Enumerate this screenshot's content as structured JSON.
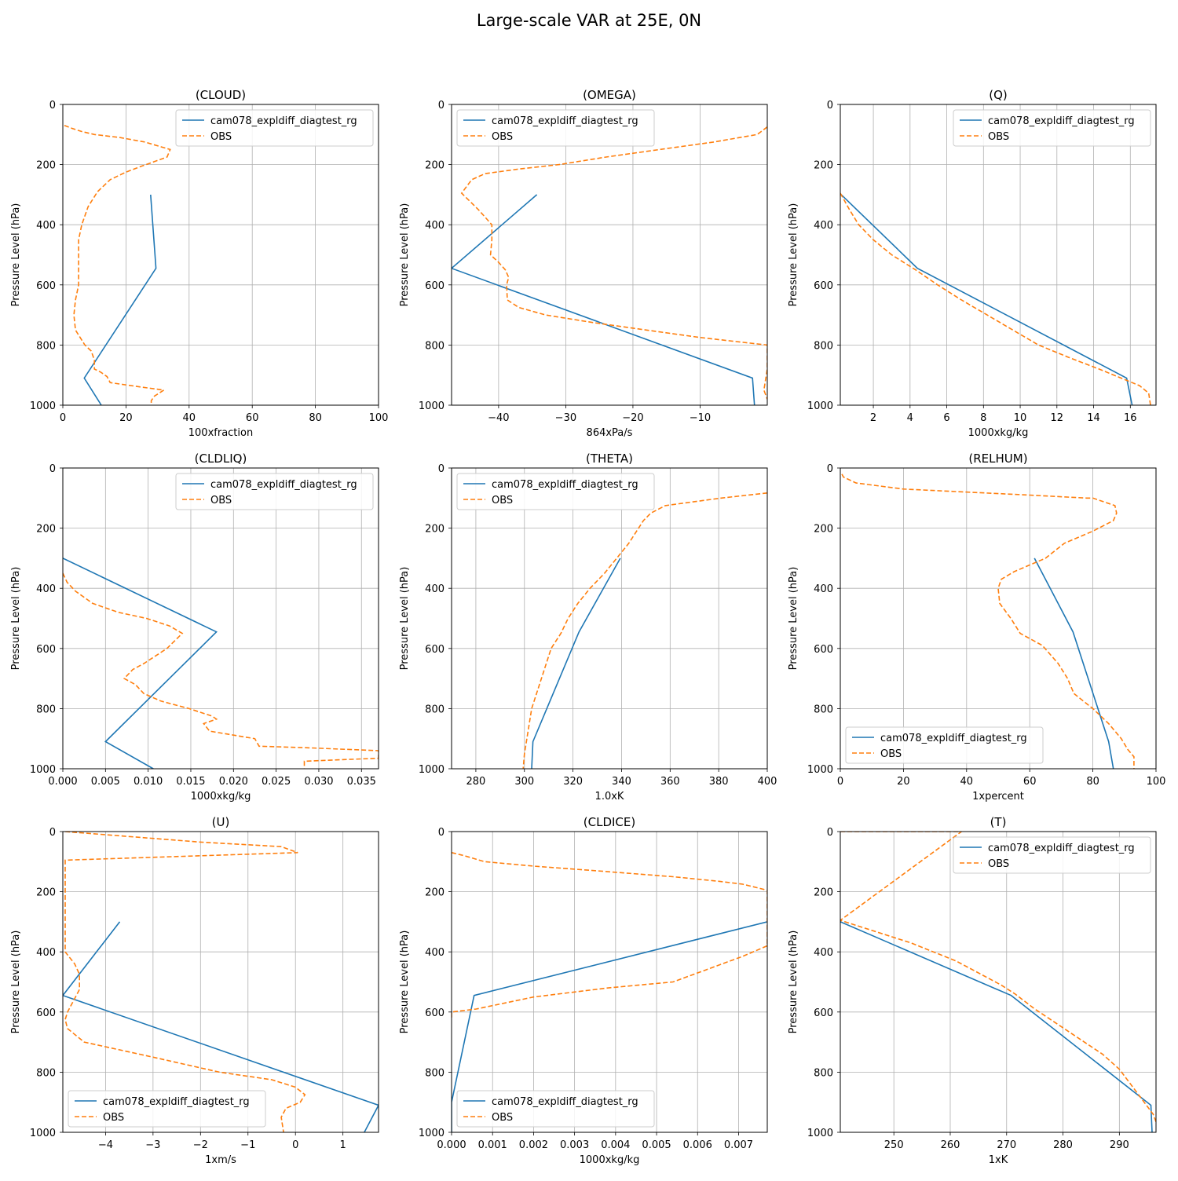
{
  "figure": {
    "title": "Large-scale VAR at 25E, 0N",
    "colors": {
      "model": "#1f77b4",
      "obs": "#ff7f0e",
      "grid": "#b0b0b0"
    }
  },
  "chart_data": [
    {
      "type": "line",
      "title": "(CLOUD)",
      "xlabel": "100xfraction",
      "ylabel": "Pressure Level (hPa)",
      "xlim": [
        0,
        100
      ],
      "ylim": [
        1000,
        0
      ],
      "grid": true,
      "legend": "upper-right",
      "xticks": [
        0,
        20,
        40,
        60,
        80,
        100
      ],
      "xticklabels": [
        "0",
        "20",
        "40",
        "60",
        "80",
        "100"
      ],
      "yticks": [
        0,
        200,
        400,
        600,
        800,
        1000
      ],
      "yticklabels": [
        "0",
        "200",
        "400",
        "600",
        "800",
        "1000"
      ],
      "series": [
        {
          "name": "cam078_expldiff_diagtest_rg",
          "style": "solid",
          "x": [
            27.8,
            29.5,
            6.8,
            12.2
          ],
          "y": [
            300,
            545,
            910,
            1000
          ]
        },
        {
          "name": "OBS",
          "style": "dashed",
          "x": [
            0.5,
            3,
            6,
            10,
            18,
            26,
            34,
            33,
            29,
            25,
            20,
            15,
            11,
            8,
            6,
            5,
            5,
            5,
            5,
            5,
            4,
            3.5,
            4,
            7,
            9,
            10,
            10,
            12,
            14,
            15,
            25,
            32,
            29,
            28,
            28
          ],
          "y": [
            70,
            80,
            90,
            100,
            110,
            125,
            150,
            175,
            190,
            205,
            225,
            250,
            290,
            340,
            400,
            450,
            500,
            550,
            580,
            600,
            650,
            700,
            750,
            800,
            820,
            850,
            880,
            890,
            905,
            925,
            940,
            950,
            970,
            985,
            1000
          ]
        }
      ]
    },
    {
      "type": "line",
      "title": "(OMEGA)",
      "xlabel": "864xPa/s",
      "ylabel": "Pressure Level (hPa)",
      "xlim": [
        -47,
        0
      ],
      "ylim": [
        1000,
        0
      ],
      "grid": true,
      "legend": "upper-left",
      "xticks": [
        -40,
        -30,
        -20,
        -10
      ],
      "xticklabels": [
        "−40",
        "−30",
        "−20",
        "−10"
      ],
      "yticks": [
        0,
        200,
        400,
        600,
        800,
        1000
      ],
      "yticklabels": [
        "0",
        "200",
        "400",
        "600",
        "800",
        "1000"
      ],
      "series": [
        {
          "name": "cam078_expldiff_diagtest_rg",
          "style": "solid",
          "x": [
            -34.3,
            -47,
            -2.2,
            -1.9
          ],
          "y": [
            300,
            545,
            910,
            1000
          ]
        },
        {
          "name": "OBS",
          "style": "dashed",
          "x": [
            0,
            -1.5,
            -8,
            -16,
            -24,
            -31,
            -37,
            -42,
            -44,
            -45.5,
            -43,
            -41,
            -41,
            -41.2,
            -40,
            -39,
            -38.5,
            -38.8,
            -38.7,
            -37,
            -33,
            -26,
            -18,
            -10,
            0,
            0,
            -0.5,
            0
          ],
          "y": [
            75,
            100,
            125,
            150,
            175,
            200,
            215,
            230,
            250,
            295,
            350,
            400,
            450,
            500,
            525,
            550,
            575,
            600,
            650,
            675,
            700,
            725,
            750,
            775,
            800,
            880,
            950,
            980
          ]
        }
      ]
    },
    {
      "type": "line",
      "title": "(Q)",
      "xlabel": "1000xkg/kg",
      "ylabel": "Pressure Level (hPa)",
      "xlim": [
        0.2,
        17.4
      ],
      "ylim": [
        1000,
        0
      ],
      "grid": true,
      "legend": "upper-right",
      "xticks": [
        2,
        4,
        6,
        8,
        10,
        12,
        14,
        16
      ],
      "xticklabels": [
        "2",
        "4",
        "6",
        "8",
        "10",
        "12",
        "14",
        "16"
      ],
      "yticks": [
        0,
        200,
        400,
        600,
        800,
        1000
      ],
      "yticklabels": [
        "0",
        "200",
        "400",
        "600",
        "800",
        "1000"
      ],
      "series": [
        {
          "name": "cam078_expldiff_diagtest_rg",
          "style": "solid",
          "x": [
            0.25,
            4.4,
            15.8,
            16.1
          ],
          "y": [
            300,
            545,
            910,
            1000
          ]
        },
        {
          "name": "OBS",
          "style": "dashed",
          "x": [
            0.2,
            0.7,
            1.2,
            2,
            3,
            4.3,
            5.5,
            6.8,
            8.2,
            9.6,
            11,
            12.6,
            14.3,
            15.5,
            16.5,
            17,
            17.1
          ],
          "y": [
            295,
            350,
            400,
            450,
            500,
            550,
            600,
            650,
            700,
            750,
            800,
            840,
            880,
            910,
            935,
            960,
            1000
          ]
        }
      ]
    },
    {
      "type": "line",
      "title": "(CLDLIQ)",
      "xlabel": "1000xkg/kg",
      "ylabel": "Pressure Level (hPa)",
      "xlim": [
        0,
        0.037
      ],
      "ylim": [
        1000,
        0
      ],
      "grid": true,
      "legend": "upper-right",
      "xticks": [
        0,
        0.005,
        0.01,
        0.015,
        0.02,
        0.025,
        0.03,
        0.035
      ],
      "xticklabels": [
        "0.000",
        "0.005",
        "0.010",
        "0.015",
        "0.020",
        "0.025",
        "0.030",
        "0.035"
      ],
      "yticks": [
        0,
        200,
        400,
        600,
        800,
        1000
      ],
      "yticklabels": [
        "0",
        "200",
        "400",
        "600",
        "800",
        "1000"
      ],
      "series": [
        {
          "name": "cam078_expldiff_diagtest_rg",
          "style": "solid",
          "x": [
            0,
            0.018,
            0.005,
            0.0106
          ],
          "y": [
            300,
            545,
            910,
            1000
          ]
        },
        {
          "name": "OBS",
          "style": "dashed",
          "x": [
            0,
            0.0005,
            0.0015,
            0.0035,
            0.0065,
            0.0098,
            0.0125,
            0.014,
            0.0122,
            0.0095,
            0.0082,
            0.0072,
            0.0085,
            0.0095,
            0.0115,
            0.0148,
            0.0175,
            0.018,
            0.0165,
            0.0172,
            0.0225,
            0.023,
            0.0285,
            0.037,
            0.037,
            0.0283,
            0.0283
          ],
          "y": [
            350,
            380,
            410,
            450,
            480,
            500,
            525,
            550,
            600,
            650,
            670,
            700,
            720,
            750,
            775,
            800,
            825,
            835,
            850,
            875,
            900,
            925,
            930,
            940,
            965,
            975,
            1000
          ]
        }
      ]
    },
    {
      "type": "line",
      "title": "(THETA)",
      "xlabel": "1.0xK",
      "ylabel": "Pressure Level (hPa)",
      "xlim": [
        270,
        400
      ],
      "ylim": [
        1000,
        0
      ],
      "grid": true,
      "legend": "upper-left",
      "xticks": [
        280,
        300,
        320,
        340,
        360,
        380,
        400
      ],
      "xticklabels": [
        "280",
        "300",
        "320",
        "340",
        "360",
        "380",
        "400"
      ],
      "yticks": [
        0,
        200,
        400,
        600,
        800,
        1000
      ],
      "yticklabels": [
        "0",
        "200",
        "400",
        "600",
        "800",
        "1000"
      ],
      "series": [
        {
          "name": "cam078_expldiff_diagtest_rg",
          "style": "solid",
          "x": [
            339.5,
            322.5,
            303.5,
            303
          ],
          "y": [
            300,
            545,
            910,
            1000
          ]
        },
        {
          "name": "OBS",
          "style": "dashed",
          "x": [
            400,
            381,
            358,
            352,
            349,
            347,
            343,
            338,
            333,
            327,
            322,
            318,
            315,
            311,
            307,
            303,
            301,
            300,
            299.5
          ],
          "y": [
            83,
            100,
            125,
            150,
            175,
            200,
            250,
            300,
            350,
            400,
            450,
            500,
            550,
            600,
            700,
            800,
            900,
            950,
            1000
          ]
        }
      ]
    },
    {
      "type": "line",
      "title": "(RELHUM)",
      "xlabel": "1xpercent",
      "ylabel": "Pressure Level (hPa)",
      "xlim": [
        0,
        100
      ],
      "ylim": [
        1000,
        0
      ],
      "grid": true,
      "legend": "lower-left",
      "xticks": [
        0,
        20,
        40,
        60,
        80,
        100
      ],
      "xticklabels": [
        "0",
        "20",
        "40",
        "60",
        "80",
        "100"
      ],
      "yticks": [
        0,
        200,
        400,
        600,
        800,
        1000
      ],
      "yticklabels": [
        "0",
        "200",
        "400",
        "600",
        "800",
        "1000"
      ],
      "series": [
        {
          "name": "cam078_expldiff_diagtest_rg",
          "style": "solid",
          "x": [
            61.5,
            73.7,
            85,
            86.5
          ],
          "y": [
            300,
            545,
            910,
            1000
          ]
        },
        {
          "name": "OBS",
          "style": "dashed",
          "x": [
            0.5,
            1,
            5,
            20,
            60,
            78,
            80,
            87,
            87.5,
            86.5,
            80,
            71,
            65,
            55,
            51,
            50,
            50.5,
            54,
            57,
            64,
            69,
            72,
            74,
            80,
            85,
            89,
            91,
            93,
            93
          ],
          "y": [
            20,
            30,
            50,
            70,
            90,
            100,
            100,
            125,
            150,
            175,
            210,
            250,
            300,
            345,
            370,
            400,
            450,
            500,
            550,
            590,
            650,
            700,
            750,
            800,
            850,
            900,
            935,
            960,
            1000
          ]
        }
      ]
    },
    {
      "type": "line",
      "title": "(U)",
      "xlabel": "1xm/s",
      "ylabel": "Pressure Level (hPa)",
      "xlim": [
        -4.9,
        1.75
      ],
      "ylim": [
        1000,
        0
      ],
      "grid": true,
      "legend": "lower-left",
      "xticks": [
        -4,
        -3,
        -2,
        -1,
        0,
        1
      ],
      "xticklabels": [
        "−4",
        "−3",
        "−2",
        "−1",
        "0",
        "1"
      ],
      "yticks": [
        0,
        200,
        400,
        600,
        800,
        1000
      ],
      "yticklabels": [
        "0",
        "200",
        "400",
        "600",
        "800",
        "1000"
      ],
      "series": [
        {
          "name": "cam078_expldiff_diagtest_rg",
          "style": "solid",
          "x": [
            -3.7,
            -4.9,
            1.75,
            1.45
          ],
          "y": [
            300,
            545,
            910,
            1000
          ]
        },
        {
          "name": "OBS",
          "style": "dashed",
          "x": [
            -4.85,
            -2,
            -0.3,
            0.05,
            -4.85,
            -4.85,
            -4.85,
            -4.85,
            -4.65,
            -4.55,
            -4.55,
            -4.7,
            -4.8,
            -4.85,
            -4.8,
            -4.45,
            -3,
            -1.6,
            -0.5,
            0,
            0.2,
            0.1,
            -0.2,
            -0.3,
            -0.25
          ],
          "y": [
            0,
            35,
            50,
            70,
            95,
            200,
            300,
            400,
            440,
            475,
            525,
            570,
            600,
            625,
            655,
            700,
            750,
            800,
            825,
            850,
            875,
            900,
            920,
            950,
            1000
          ]
        }
      ]
    },
    {
      "type": "line",
      "title": "(CLDICE)",
      "xlabel": "1000xkg/kg",
      "ylabel": "Pressure Level (hPa)",
      "xlim": [
        0,
        0.0077
      ],
      "ylim": [
        1000,
        0
      ],
      "grid": true,
      "legend": "lower-left",
      "xticks": [
        0,
        0.001,
        0.002,
        0.003,
        0.004,
        0.005,
        0.006,
        0.007
      ],
      "xticklabels": [
        "0.000",
        "0.001",
        "0.002",
        "0.003",
        "0.004",
        "0.005",
        "0.006",
        "0.007"
      ],
      "yticks": [
        0,
        200,
        400,
        600,
        800,
        1000
      ],
      "yticklabels": [
        "0",
        "200",
        "400",
        "600",
        "800",
        "1000"
      ],
      "series": [
        {
          "name": "cam078_expldiff_diagtest_rg",
          "style": "solid",
          "x": [
            0.0077,
            0.00055,
            0,
            0
          ],
          "y": [
            300,
            545,
            900,
            1000
          ]
        },
        {
          "name": "OBS",
          "style": "dashed",
          "x": [
            0,
            0.0003,
            0.0008,
            0.002,
            0.0035,
            0.0054,
            0.0065,
            0.0071,
            0.0077,
            0.0077,
            0.0071,
            0.0062,
            0.0054,
            0.0038,
            0.002,
            0.0006,
            0,
            0
          ],
          "y": [
            70,
            80,
            100,
            115,
            130,
            150,
            165,
            175,
            195,
            380,
            415,
            460,
            500,
            520,
            550,
            590,
            600,
            620
          ]
        }
      ]
    },
    {
      "type": "line",
      "title": "(T)",
      "xlabel": "1xK",
      "ylabel": "Pressure Level (hPa)",
      "xlim": [
        240.5,
        296.5
      ],
      "ylim": [
        1000,
        0
      ],
      "grid": true,
      "legend": "upper-right",
      "xticks": [
        250,
        260,
        270,
        280,
        290
      ],
      "xticklabels": [
        "250",
        "260",
        "270",
        "280",
        "290"
      ],
      "yticks": [
        0,
        200,
        400,
        600,
        800,
        1000
      ],
      "yticklabels": [
        "0",
        "200",
        "400",
        "600",
        "800",
        "1000"
      ],
      "series": [
        {
          "name": "cam078_expldiff_diagtest_rg",
          "style": "solid",
          "x": [
            240.5,
            270.8,
            295.6,
            295.8
          ],
          "y": [
            300,
            545,
            910,
            1000
          ]
        },
        {
          "name": "OBS",
          "style": "dashed",
          "x": [
            240.5,
            260,
            262,
            240.5,
            243,
            248,
            253,
            257,
            261,
            265,
            269,
            271.5,
            275,
            279,
            283,
            287,
            290,
            292,
            294,
            296,
            296.5
          ],
          "y": [
            0,
            0,
            0,
            295,
            310,
            340,
            370,
            400,
            430,
            470,
            510,
            540,
            590,
            640,
            690,
            740,
            790,
            840,
            890,
            940,
            965
          ]
        }
      ]
    }
  ]
}
